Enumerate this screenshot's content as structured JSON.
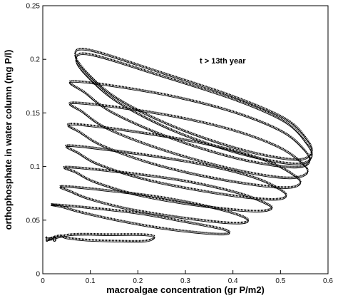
{
  "chart_data": {
    "type": "line",
    "title": "",
    "xlabel": "macroalgae concentration (gr P/m2)",
    "ylabel": "orthophosphate in water column (mg P/l)",
    "xlim": [
      0,
      0.6
    ],
    "ylim": [
      0,
      0.25
    ],
    "x_ticks": [
      "0",
      "0.1",
      "0.2",
      "0.3",
      "0.4",
      "0.5",
      "0.6"
    ],
    "y_ticks": [
      "0",
      "0.05",
      "0.1",
      "0.15",
      "0.2",
      "0.25"
    ],
    "grid": false,
    "legend": "none",
    "line_color": "#000000",
    "annotations": [
      {
        "text": "t=0",
        "x": 0.005,
        "y": 0.03
      },
      {
        "text": "t > 13th year",
        "x": 0.33,
        "y": 0.196
      }
    ],
    "series": [
      {
        "cycles": [
          {
            "x": [
              0.01,
              0.06,
              0.14,
              0.21,
              0.235,
              0.215,
              0.15,
              0.09,
              0.05,
              0.035
            ],
            "y": [
              0.032,
              0.037,
              0.037,
              0.037,
              0.035,
              0.031,
              0.031,
              0.032,
              0.034,
              0.036
            ]
          },
          {
            "x": [
              0.02,
              0.1,
              0.2,
              0.3,
              0.38,
              0.39,
              0.35,
              0.25,
              0.15,
              0.08,
              0.04
            ],
            "y": [
              0.065,
              0.062,
              0.057,
              0.049,
              0.042,
              0.038,
              0.038,
              0.043,
              0.051,
              0.058,
              0.063
            ]
          },
          {
            "x": [
              0.04,
              0.14,
              0.26,
              0.36,
              0.42,
              0.43,
              0.39,
              0.29,
              0.18,
              0.1,
              0.06
            ],
            "y": [
              0.082,
              0.078,
              0.071,
              0.062,
              0.054,
              0.049,
              0.048,
              0.053,
              0.061,
              0.07,
              0.077
            ]
          },
          {
            "x": [
              0.05,
              0.17,
              0.3,
              0.41,
              0.47,
              0.48,
              0.44,
              0.33,
              0.2,
              0.11,
              0.07
            ],
            "y": [
              0.1,
              0.095,
              0.087,
              0.076,
              0.066,
              0.061,
              0.059,
              0.064,
              0.074,
              0.086,
              0.095
            ]
          },
          {
            "x": [
              0.055,
              0.19,
              0.33,
              0.44,
              0.5,
              0.51,
              0.47,
              0.36,
              0.22,
              0.12,
              0.075
            ],
            "y": [
              0.12,
              0.113,
              0.103,
              0.091,
              0.079,
              0.072,
              0.07,
              0.076,
              0.088,
              0.102,
              0.113
            ]
          },
          {
            "x": [
              0.06,
              0.21,
              0.36,
              0.47,
              0.53,
              0.54,
              0.5,
              0.38,
              0.24,
              0.13,
              0.08
            ],
            "y": [
              0.14,
              0.132,
              0.12,
              0.106,
              0.092,
              0.084,
              0.081,
              0.088,
              0.102,
              0.119,
              0.132
            ]
          },
          {
            "x": [
              0.065,
              0.23,
              0.38,
              0.49,
              0.545,
              0.555,
              0.51,
              0.4,
              0.26,
              0.14,
              0.085
            ],
            "y": [
              0.16,
              0.151,
              0.137,
              0.12,
              0.104,
              0.094,
              0.09,
              0.098,
              0.115,
              0.135,
              0.151
            ]
          },
          {
            "x": [
              0.065,
              0.24,
              0.39,
              0.5,
              0.55,
              0.56,
              0.52,
              0.41,
              0.27,
              0.15,
              0.09
            ],
            "y": [
              0.18,
              0.169,
              0.153,
              0.134,
              0.116,
              0.104,
              0.1,
              0.108,
              0.127,
              0.15,
              0.169
            ]
          },
          {
            "x": [
              0.068,
              0.1,
              0.25,
              0.4,
              0.51,
              0.555,
              0.565,
              0.53,
              0.42,
              0.28,
              0.16,
              0.095
            ],
            "y": [
              0.205,
              0.209,
              0.188,
              0.166,
              0.145,
              0.126,
              0.113,
              0.107,
              0.116,
              0.137,
              0.163,
              0.187
            ]
          },
          {
            "x": [
              0.07,
              0.1,
              0.25,
              0.41,
              0.51,
              0.555,
              0.565,
              0.53,
              0.42,
              0.28,
              0.16,
              0.095
            ],
            "y": [
              0.2,
              0.205,
              0.185,
              0.162,
              0.142,
              0.122,
              0.109,
              0.103,
              0.112,
              0.133,
              0.16,
              0.184
            ]
          }
        ]
      }
    ]
  }
}
